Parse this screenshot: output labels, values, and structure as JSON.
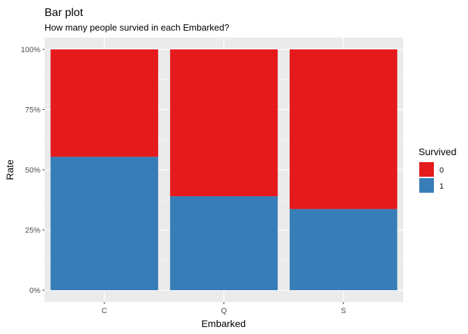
{
  "chart_data": {
    "type": "bar",
    "stacked": true,
    "title": "Bar plot",
    "subtitle": "How many people survied in each Embarked?",
    "xlabel": "Embarked",
    "ylabel": "Rate",
    "categories": [
      "C",
      "Q",
      "S"
    ],
    "series": [
      {
        "name": "1",
        "values": [
          0.554,
          0.39,
          0.337
        ],
        "color": "#377EB8"
      },
      {
        "name": "0",
        "values": [
          0.446,
          0.61,
          0.663
        ],
        "color": "#E41A1C"
      }
    ],
    "ylim": [
      0,
      1
    ],
    "y_ticks": [
      {
        "value": 0,
        "label": "0%"
      },
      {
        "value": 0.25,
        "label": "25%"
      },
      {
        "value": 0.5,
        "label": "50%"
      },
      {
        "value": 0.75,
        "label": "75%"
      },
      {
        "value": 1,
        "label": "100%"
      }
    ],
    "grid": true,
    "legend": {
      "title": "Survived",
      "placement": "right",
      "entries": [
        {
          "label": "0",
          "color": "#E41A1C"
        },
        {
          "label": "1",
          "color": "#377EB8"
        }
      ]
    },
    "panel_background": "#EBEBEB"
  }
}
